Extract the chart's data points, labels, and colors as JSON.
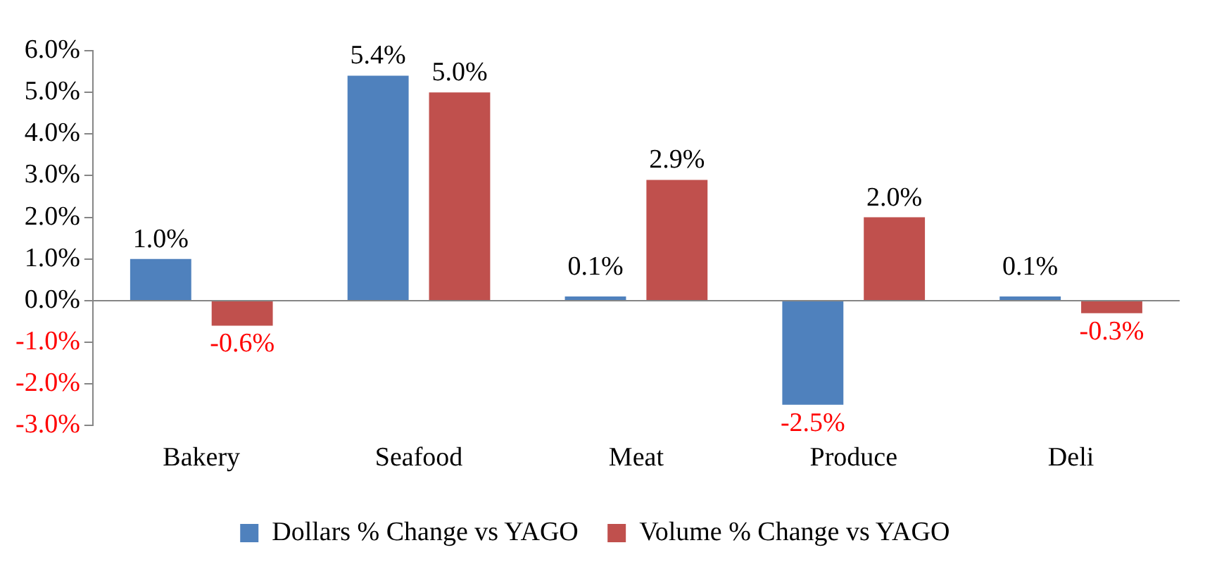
{
  "chart_data": {
    "type": "bar",
    "categories": [
      "Bakery",
      "Seafood",
      "Meat",
      "Produce",
      "Deli"
    ],
    "series": [
      {
        "name": "Dollars % Change vs YAGO",
        "color": "#4f81bd",
        "values": [
          1.0,
          5.4,
          0.1,
          -2.5,
          0.1
        ],
        "value_labels": [
          "1.0%",
          "5.4%",
          "0.1%",
          "-2.5%",
          "0.1%"
        ]
      },
      {
        "name": "Volume % Change vs YAGO",
        "color": "#c0504d",
        "values": [
          -0.6,
          5.0,
          2.9,
          2.0,
          -0.3
        ],
        "value_labels": [
          "-0.6%",
          "5.0%",
          "2.9%",
          "2.0%",
          "-0.3%"
        ]
      }
    ],
    "ylim": [
      -3,
      6
    ],
    "yticks": [
      {
        "value": -3,
        "label": "-3.0%"
      },
      {
        "value": -2,
        "label": "-2.0%"
      },
      {
        "value": -1,
        "label": "-1.0%"
      },
      {
        "value": 0,
        "label": "0.0%"
      },
      {
        "value": 1,
        "label": "1.0%"
      },
      {
        "value": 2,
        "label": "2.0%"
      },
      {
        "value": 3,
        "label": "3.0%"
      },
      {
        "value": 4,
        "label": "4.0%"
      },
      {
        "value": 5,
        "label": "5.0%"
      },
      {
        "value": 6,
        "label": "6.0%"
      }
    ],
    "legend": "bottom"
  }
}
